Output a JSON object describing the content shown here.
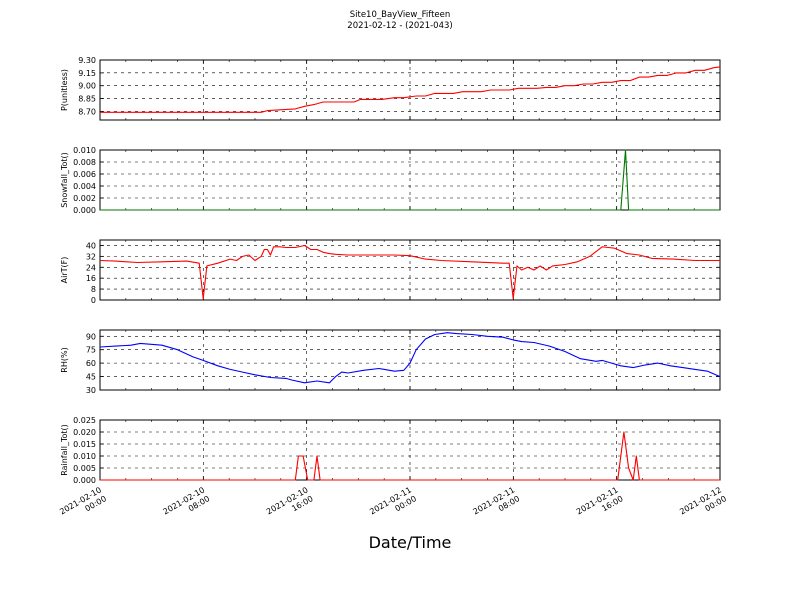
{
  "header": {
    "title": "Site10_BayView_Fifteen",
    "subtitle": "2021-02-12 - (2021-043)"
  },
  "xlabel": "Date/Time",
  "chart_data": [
    {
      "type": "line",
      "ylabel": "P(unitless)",
      "color": "#ff0000",
      "ylim": [
        8.6,
        9.3
      ],
      "yticks": [
        "8.70",
        "8.85",
        "9.00",
        "9.15",
        "9.30"
      ],
      "ytick_values": [
        8.7,
        8.85,
        9.0,
        9.15,
        9.3
      ],
      "grid": true,
      "series": [
        {
          "x": [
            0,
            0.09,
            0.18,
            0.27,
            0.33,
            0.34,
            0.45,
            0.47,
            0.52,
            0.54,
            0.63,
            0.66,
            0.69,
            0.72,
            0.76,
            0.79,
            0.82,
            0.84,
            0.88,
            0.91,
            0.95,
            0.98,
            1.02,
            1.05,
            1.08,
            1.11,
            1.14,
            1.17,
            1.2,
            1.23,
            1.26,
            1.29,
            1.32,
            1.35,
            1.38,
            1.41,
            1.44,
            1.47,
            1.5,
            1.53,
            1.56,
            1.59,
            1.62,
            1.65,
            1.68,
            1.71,
            1.74,
            1.77,
            1.8,
            1.83,
            1.86,
            1.89,
            1.92,
            1.95,
            1.98,
            2.0
          ],
          "values": [
            8.69,
            8.69,
            8.69,
            8.69,
            8.69,
            8.69,
            8.69,
            8.69,
            8.69,
            8.71,
            8.73,
            8.76,
            8.78,
            8.81,
            8.81,
            8.81,
            8.81,
            8.84,
            8.84,
            8.84,
            8.86,
            8.86,
            8.88,
            8.88,
            8.91,
            8.91,
            8.91,
            8.93,
            8.93,
            8.93,
            8.95,
            8.95,
            8.95,
            8.97,
            8.97,
            8.97,
            8.98,
            8.98,
            9.0,
            9.0,
            9.02,
            9.02,
            9.04,
            9.04,
            9.06,
            9.06,
            9.1,
            9.1,
            9.12,
            9.12,
            9.15,
            9.15,
            9.18,
            9.18,
            9.21,
            9.22
          ]
        }
      ]
    },
    {
      "type": "line",
      "ylabel": "Snowfall_Tot()",
      "color": "#007700",
      "ylim": [
        0,
        0.01
      ],
      "yticks": [
        "0.000",
        "0.002",
        "0.004",
        "0.006",
        "0.008",
        "0.010"
      ],
      "ytick_values": [
        0,
        0.002,
        0.004,
        0.006,
        0.008,
        0.01
      ],
      "grid": true,
      "series": [
        {
          "x": [
            0,
            1.68,
            1.695,
            1.705,
            2.0
          ],
          "values": [
            0,
            0,
            0.01,
            0,
            0
          ]
        }
      ]
    },
    {
      "type": "line",
      "ylabel": "AirT(F)",
      "color": "#ff0000",
      "ylim": [
        0,
        44
      ],
      "yticks": [
        "0",
        "8",
        "16",
        "24",
        "32",
        "40"
      ],
      "ytick_values": [
        0,
        8,
        16,
        24,
        32,
        40
      ],
      "grid": true,
      "series": [
        {
          "x": [
            0,
            0.05,
            0.12,
            0.2,
            0.28,
            0.32,
            0.333,
            0.345,
            0.38,
            0.42,
            0.44,
            0.46,
            0.48,
            0.5,
            0.52,
            0.53,
            0.54,
            0.55,
            0.56,
            0.58,
            0.6,
            0.63,
            0.66,
            0.68,
            0.7,
            0.72,
            0.74,
            0.76,
            0.8,
            0.9,
            0.95,
            1.0,
            1.05,
            1.1,
            1.2,
            1.3,
            1.32,
            1.333,
            1.345,
            1.36,
            1.38,
            1.4,
            1.42,
            1.44,
            1.46,
            1.5,
            1.54,
            1.58,
            1.62,
            1.64,
            1.66,
            1.7,
            1.74,
            1.78,
            1.85,
            1.92,
            2.0
          ],
          "values": [
            29,
            28.5,
            27.5,
            28,
            28.5,
            27,
            1,
            25,
            27,
            30,
            29,
            32,
            33,
            29,
            32,
            37,
            37,
            33,
            39,
            39,
            38.5,
            38.5,
            40,
            37,
            37,
            35,
            34,
            33.5,
            33,
            33,
            33,
            32.5,
            30,
            29,
            28,
            27,
            27,
            1,
            25,
            22,
            24,
            22,
            25,
            22,
            25,
            26,
            28,
            32,
            39,
            38.5,
            38,
            34,
            33,
            30.5,
            30,
            29,
            29
          ]
        }
      ]
    },
    {
      "type": "line",
      "ylabel": "RH(%)",
      "color": "#0000ff",
      "ylim": [
        30,
        97
      ],
      "yticks": [
        "30",
        "45",
        "60",
        "75",
        "90"
      ],
      "ytick_values": [
        30,
        45,
        60,
        75,
        90
      ],
      "grid": true,
      "series": [
        {
          "x": [
            0,
            0.05,
            0.1,
            0.13,
            0.2,
            0.25,
            0.3,
            0.333,
            0.38,
            0.42,
            0.46,
            0.5,
            0.55,
            0.6,
            0.62,
            0.66,
            0.7,
            0.74,
            0.76,
            0.78,
            0.8,
            0.85,
            0.9,
            0.95,
            0.98,
            1.0,
            1.02,
            1.05,
            1.08,
            1.12,
            1.15,
            1.2,
            1.25,
            1.3,
            1.333,
            1.36,
            1.4,
            1.45,
            1.5,
            1.55,
            1.6,
            1.62,
            1.65,
            1.68,
            1.72,
            1.76,
            1.8,
            1.84,
            1.88,
            1.92,
            1.96,
            2.0
          ],
          "values": [
            78,
            79,
            80,
            82,
            80,
            75,
            67,
            63,
            57,
            53,
            50,
            47,
            44,
            43,
            41,
            38,
            40,
            38,
            45,
            50,
            49,
            52,
            54,
            51,
            52,
            60,
            75,
            87,
            92,
            94,
            93,
            92,
            90,
            89,
            86,
            84,
            83,
            79,
            73,
            65,
            62,
            63,
            60,
            57,
            55,
            58,
            60,
            57,
            55,
            53,
            51,
            45
          ]
        }
      ]
    },
    {
      "type": "line",
      "ylabel": "Rainfall_Tot()",
      "color": "#ff0000",
      "ylim": [
        0,
        0.025
      ],
      "yticks": [
        "0.000",
        "0.005",
        "0.010",
        "0.015",
        "0.020",
        "0.025"
      ],
      "ytick_values": [
        0,
        0.005,
        0.01,
        0.015,
        0.02,
        0.025
      ],
      "grid": true,
      "series": [
        {
          "x": [
            0,
            0.63,
            0.64,
            0.655,
            0.67,
            0.69,
            0.7,
            0.71,
            1.67,
            1.69,
            1.705,
            1.72,
            1.73,
            1.74,
            1.75,
            2.0
          ],
          "values": [
            0,
            0,
            0.01,
            0.01,
            0,
            0,
            0.01,
            0,
            0,
            0.02,
            0.005,
            0,
            0.01,
            0,
            0,
            0
          ]
        }
      ]
    }
  ],
  "xaxis": {
    "tick_labels": [
      [
        "2021-02-10",
        "00:00"
      ],
      [
        "2021-02-10",
        "08:00"
      ],
      [
        "2021-02-10",
        "16:00"
      ],
      [
        "2021-02-11",
        "00:00"
      ],
      [
        "2021-02-11",
        "08:00"
      ],
      [
        "2021-02-11",
        "16:00"
      ],
      [
        "2021-02-12",
        "00:00"
      ]
    ],
    "tick_values_days": [
      0,
      0.3333,
      0.6667,
      1.0,
      1.3333,
      1.6667,
      2.0
    ]
  }
}
